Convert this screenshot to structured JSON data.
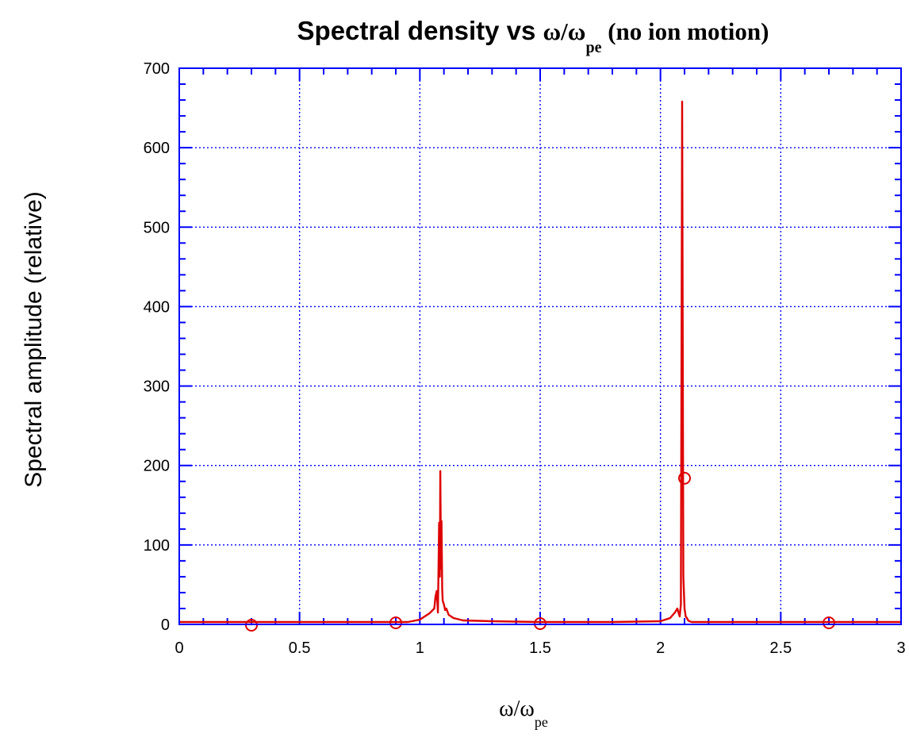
{
  "chart_data": {
    "type": "line",
    "title": {
      "main": "Spectral density vs ",
      "ratio": "ω/ω",
      "sub": "pe",
      "tail": " (no ion motion)"
    },
    "xlabel": {
      "main": "ω/ω",
      "sub": "pe"
    },
    "ylabel": "Spectral amplitude (relative)",
    "xlim": [
      0,
      3
    ],
    "ylim": [
      0,
      700
    ],
    "x_ticks": [
      0,
      0.5,
      1,
      1.5,
      2,
      2.5,
      3
    ],
    "x_tick_labels": [
      "0",
      "0.5",
      "1",
      "1.5",
      "2",
      "2.5",
      "3"
    ],
    "y_ticks": [
      0,
      100,
      200,
      300,
      400,
      500,
      600,
      700
    ],
    "y_tick_labels": [
      "0",
      "100",
      "200",
      "300",
      "400",
      "500",
      "600",
      "700"
    ],
    "grid": true,
    "colors": {
      "axes": "#0000ff",
      "grid": "#0000ff",
      "series": "#dd0000"
    },
    "series": [
      {
        "style": "line",
        "x": [
          0,
          0.5,
          0.95,
          1.0,
          1.02,
          1.04,
          1.06,
          1.065,
          1.07,
          1.075,
          1.08,
          1.083,
          1.085,
          1.088,
          1.09,
          1.093,
          1.095,
          1.1,
          1.105,
          1.11,
          1.12,
          1.14,
          1.18,
          1.3,
          1.5,
          1.8,
          2.0,
          2.04,
          2.06,
          2.07,
          2.08,
          2.085,
          2.09,
          2.095,
          2.1,
          2.105,
          2.11,
          2.115,
          2.12,
          2.13,
          2.15,
          2.2,
          2.5,
          3.0
        ],
        "y": [
          3,
          3,
          3,
          6,
          10,
          14,
          20,
          35,
          42,
          15,
          128,
          60,
          193,
          70,
          130,
          45,
          30,
          25,
          18,
          20,
          12,
          8,
          5,
          4,
          3,
          3,
          4,
          8,
          15,
          20,
          10,
          25,
          658,
          60,
          20,
          10,
          8,
          5,
          4,
          3,
          3,
          3,
          3,
          3
        ]
      },
      {
        "style": "markers",
        "marker": "circle",
        "x": [
          0.3,
          0.9,
          1.5,
          2.1,
          2.7
        ],
        "y": [
          -1,
          2,
          1,
          184,
          2
        ]
      }
    ]
  }
}
